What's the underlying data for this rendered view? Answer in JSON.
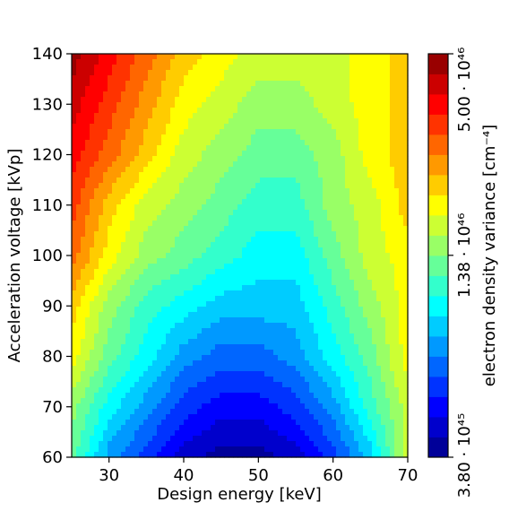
{
  "chart_data": {
    "type": "contourf",
    "xlabel": "Design energy [keV]",
    "ylabel": "Acceleration voltage [kVp]",
    "xlim": [
      25,
      70
    ],
    "ylim": [
      60,
      140
    ],
    "xticks": [
      30,
      40,
      50,
      60,
      70
    ],
    "yticks": [
      60,
      70,
      80,
      90,
      100,
      110,
      120,
      130,
      140
    ],
    "colormap": "jet",
    "colorbar": {
      "label": "electron density variance [cm⁻⁴]",
      "scale": "log",
      "range": [
        3.8e+45,
        5e+46
      ],
      "tick_labels": [
        "3.80 · 10⁴⁵",
        "1.38 · 10⁴⁶",
        "5.00 · 10⁴⁶"
      ],
      "tick_values": [
        3.8e+45,
        1.38e+46,
        5e+46
      ],
      "levels": 20
    },
    "x": [
      25,
      30,
      35,
      40,
      45,
      50,
      55,
      60,
      65,
      70
    ],
    "y": [
      60,
      70,
      80,
      90,
      100,
      110,
      120,
      130,
      140
    ],
    "z_level_index": [
      [
        9,
        5,
        3,
        1,
        0,
        0,
        1,
        3,
        6,
        11
      ],
      [
        10,
        7,
        5,
        3,
        2,
        2,
        3,
        5,
        8,
        11
      ],
      [
        12,
        9,
        7,
        5,
        4,
        4,
        5,
        7,
        9,
        12
      ],
      [
        13,
        10,
        8,
        7,
        6,
        6,
        6,
        8,
        10,
        12
      ],
      [
        15,
        12,
        10,
        9,
        8,
        7,
        7,
        9,
        11,
        12
      ],
      [
        16,
        13,
        11,
        10,
        9,
        8,
        8,
        10,
        11,
        13
      ],
      [
        17,
        15,
        13,
        11,
        10,
        9,
        9,
        10,
        12,
        13
      ],
      [
        18,
        16,
        14,
        12,
        11,
        10,
        10,
        11,
        12,
        13
      ],
      [
        19,
        17,
        15,
        13,
        12,
        11,
        11,
        11,
        12,
        13
      ]
    ]
  }
}
